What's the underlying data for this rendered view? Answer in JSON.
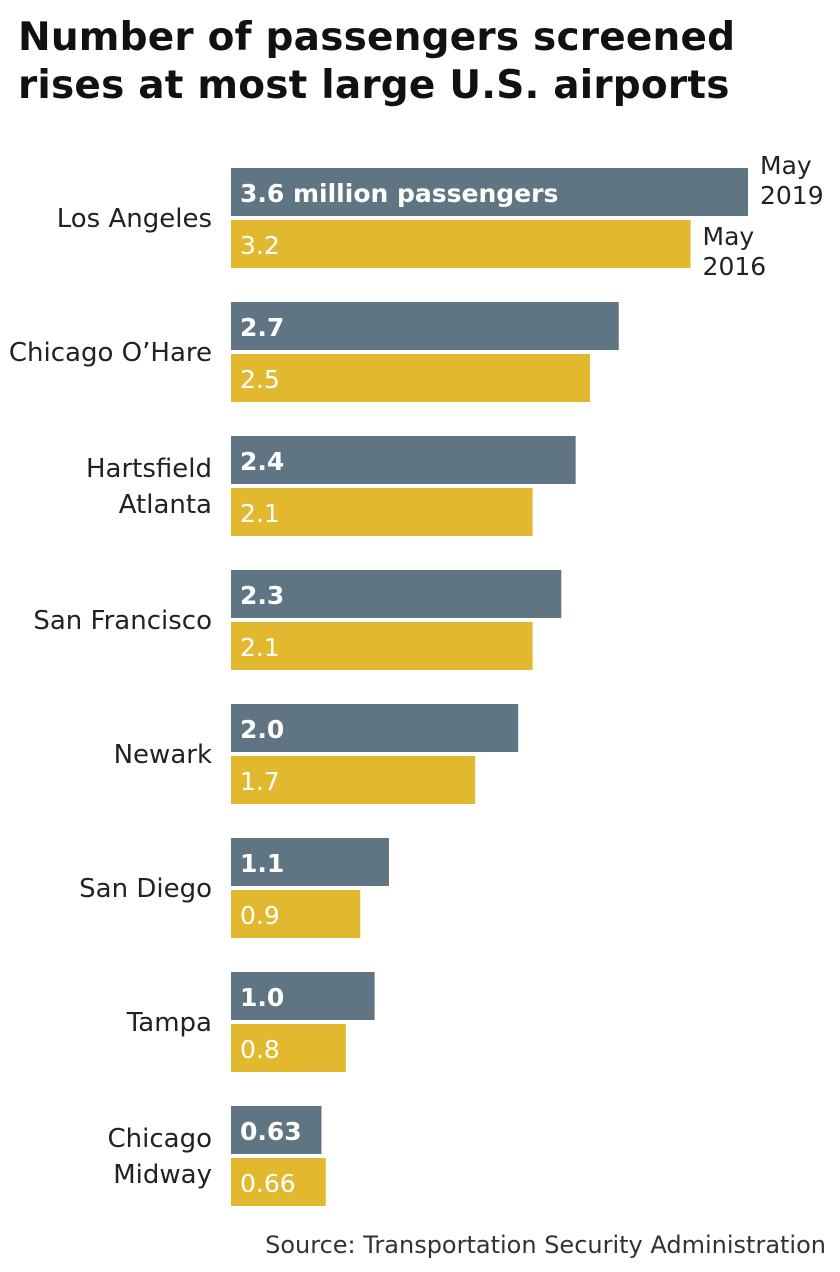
{
  "title": "Number of passengers screened rises at most large U.S. airports",
  "source": "Source: Transportation Security Administration",
  "colors": {
    "may_2019": "#5f7584",
    "may_2016": "#e2b92e"
  },
  "chart_data": {
    "type": "bar",
    "orientation": "horizontal",
    "categories": [
      "Los Angeles",
      "Chicago O'Hare",
      "Hartsfield Atlanta",
      "San Francisco",
      "Newark",
      "San Diego",
      "Tampa",
      "Chicago Midway"
    ],
    "category_lines": [
      [
        "Los Angeles"
      ],
      [
        "Chicago O’Hare"
      ],
      [
        "Hartsfield",
        "Atlanta"
      ],
      [
        "San Francisco"
      ],
      [
        "Newark"
      ],
      [
        "San Diego"
      ],
      [
        "Tampa"
      ],
      [
        "Chicago",
        "Midway"
      ]
    ],
    "series": [
      {
        "name": "May 2019",
        "legend_lines": [
          "May",
          "2019"
        ],
        "values": [
          3.6,
          2.7,
          2.4,
          2.3,
          2.0,
          1.1,
          1.0,
          0.63
        ],
        "labels": [
          "3.6 million passengers",
          "2.7",
          "2.4",
          "2.3",
          "2.0",
          "1.1",
          "1.0",
          "0.63"
        ]
      },
      {
        "name": "May 2016",
        "legend_lines": [
          "May",
          "2016"
        ],
        "values": [
          3.2,
          2.5,
          2.1,
          2.1,
          1.7,
          0.9,
          0.8,
          0.66
        ],
        "labels": [
          "3.2",
          "2.5",
          "2.1",
          "2.1",
          "1.7",
          "0.9",
          "0.8",
          "0.66"
        ]
      }
    ],
    "unit": "million passengers",
    "xlim": [
      0,
      3.6
    ],
    "grid": false,
    "legend": "annotations beside the Los Angeles bars"
  }
}
